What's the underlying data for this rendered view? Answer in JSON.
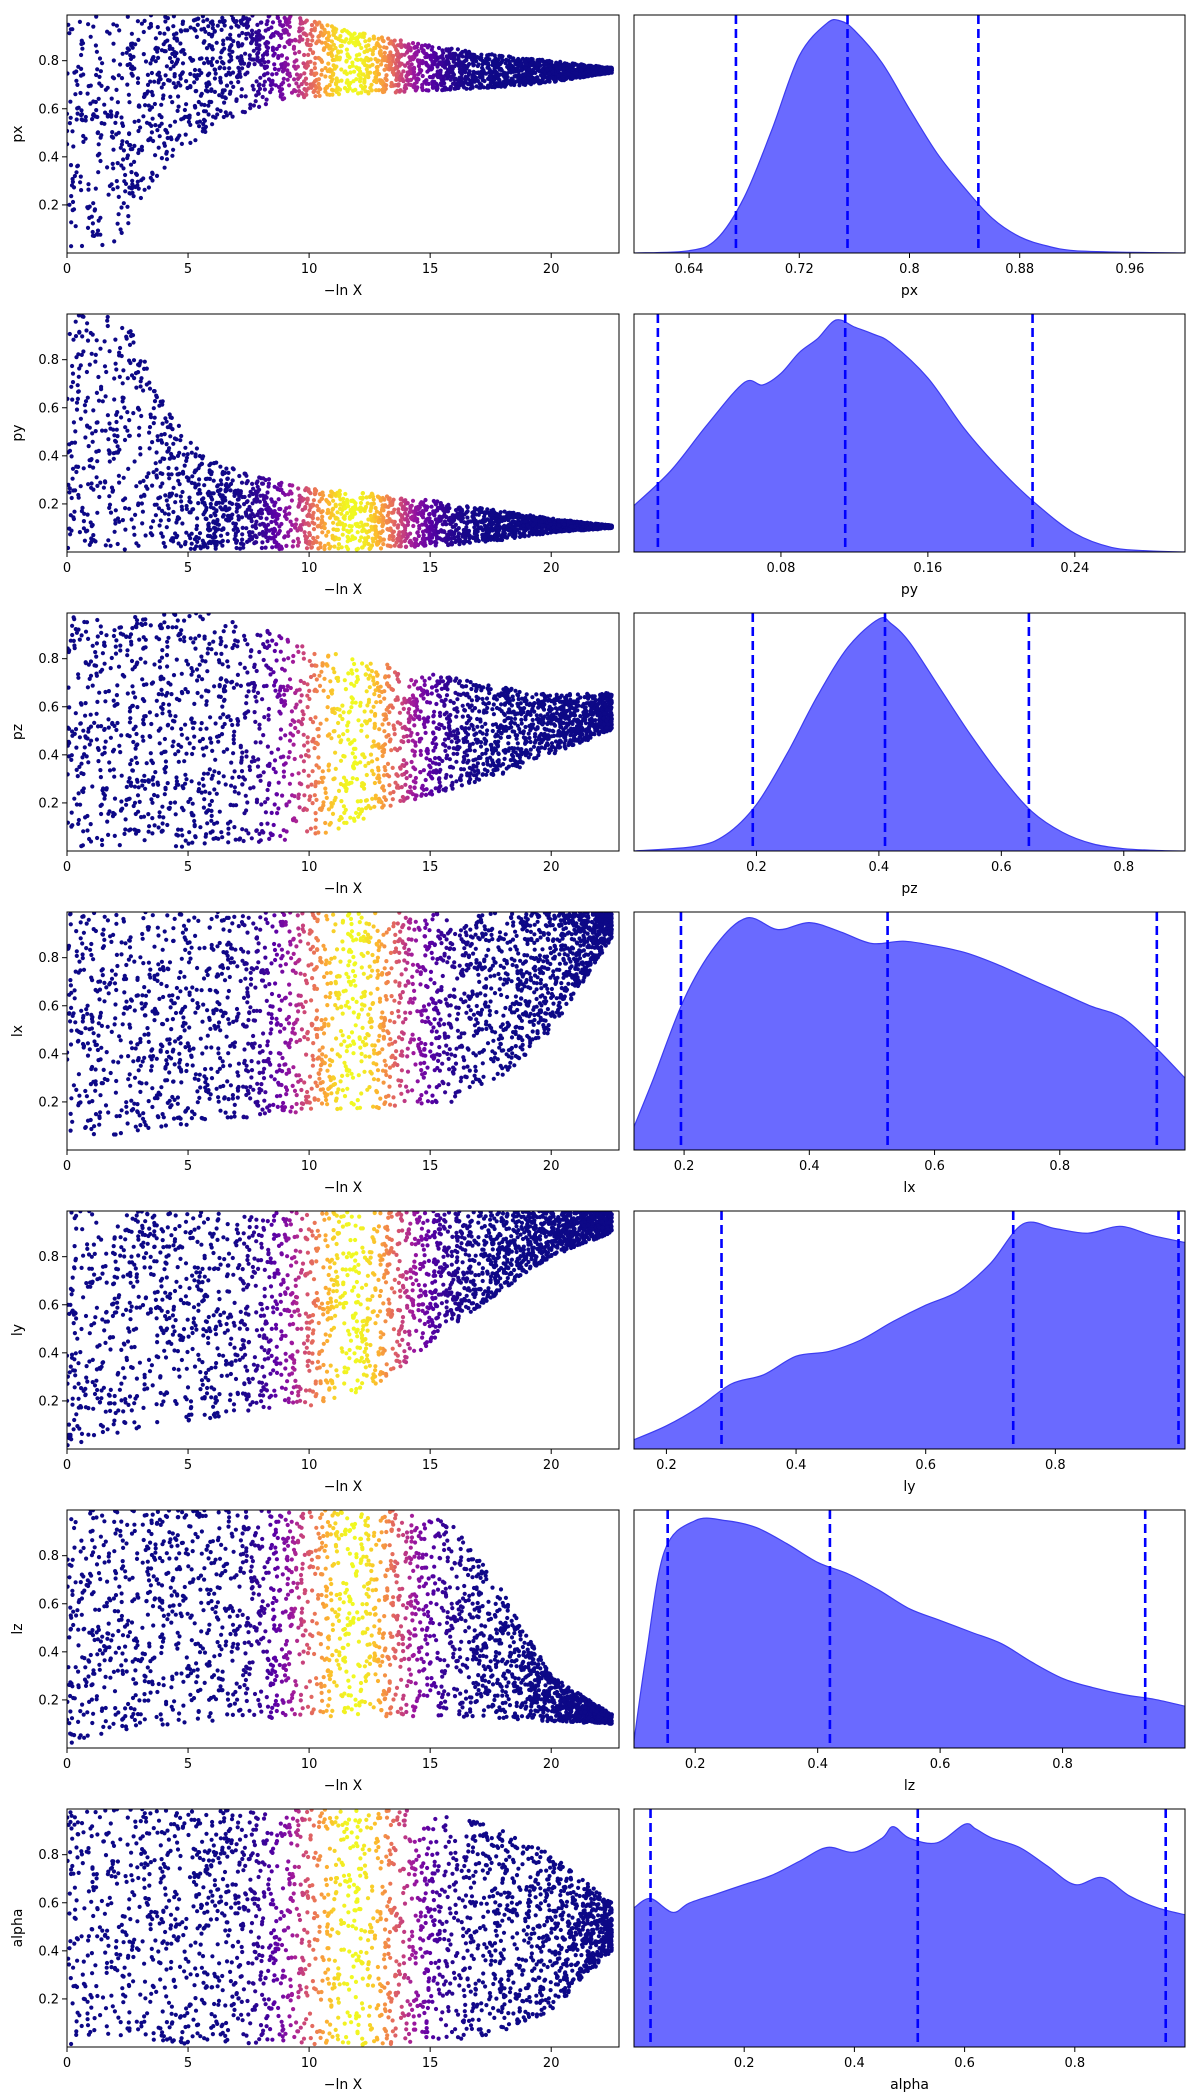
{
  "figure": {
    "colors": {
      "kde_fill": "#6a6aff",
      "kde_edge": "#3c3cf0",
      "quantile_line": "#0000ff",
      "scatter_colormap": [
        "#0d0887",
        "#5a01a5",
        "#9c179e",
        "#cc4778",
        "#ed7953",
        "#fdb42f",
        "#f0f921"
      ]
    }
  },
  "chart_data": [
    {
      "type": "scatter",
      "name": "trace-px",
      "xlabel": "−ln X",
      "ylabel": "px",
      "xlim": [
        0,
        22.8
      ],
      "ylim": [
        0,
        0.99
      ],
      "xticks": [
        0,
        5,
        10,
        15,
        20
      ],
      "yticks": [
        0.2,
        0.4,
        0.6,
        0.8
      ],
      "envelope": {
        "x": [
          0,
          2,
          3,
          4,
          5,
          6,
          7,
          8,
          9,
          10,
          12,
          14,
          16,
          18,
          20,
          22.5
        ],
        "lower": [
          0.01,
          0.02,
          0.18,
          0.34,
          0.44,
          0.52,
          0.57,
          0.61,
          0.64,
          0.65,
          0.66,
          0.67,
          0.68,
          0.69,
          0.71,
          0.75
        ],
        "upper": [
          0.99,
          0.99,
          0.99,
          0.99,
          0.99,
          0.99,
          0.99,
          0.99,
          0.99,
          0.97,
          0.92,
          0.88,
          0.85,
          0.82,
          0.8,
          0.77
        ]
      },
      "colormap_peak_x": 11.8
    },
    {
      "type": "area",
      "name": "kde-px",
      "xlabel": "px",
      "xlim": [
        0.6,
        1.0
      ],
      "xticks": [
        0.64,
        0.72,
        0.8,
        0.88,
        0.96
      ],
      "quantiles": [
        0.674,
        0.755,
        0.85
      ],
      "x": [
        0.6,
        0.64,
        0.66,
        0.68,
        0.7,
        0.72,
        0.74,
        0.75,
        0.76,
        0.78,
        0.8,
        0.82,
        0.84,
        0.86,
        0.88,
        0.9,
        0.92,
        0.96,
        1.0
      ],
      "density": [
        0,
        0.01,
        0.06,
        0.24,
        0.53,
        0.85,
        0.99,
        1.0,
        0.96,
        0.82,
        0.62,
        0.43,
        0.28,
        0.15,
        0.07,
        0.03,
        0.01,
        0.003,
        0
      ]
    },
    {
      "type": "scatter",
      "name": "trace-py",
      "xlabel": "−ln X",
      "ylabel": "py",
      "xlim": [
        0,
        22.8
      ],
      "ylim": [
        0,
        0.99
      ],
      "xticks": [
        0,
        5,
        10,
        15,
        20
      ],
      "yticks": [
        0.2,
        0.4,
        0.6,
        0.8
      ],
      "envelope": {
        "x": [
          0,
          2,
          3,
          4,
          5,
          6,
          8,
          10,
          12,
          14,
          16,
          18,
          20,
          22.5
        ],
        "lower": [
          0.01,
          0.01,
          0.01,
          0.01,
          0.01,
          0.01,
          0.01,
          0.01,
          0.01,
          0.02,
          0.03,
          0.05,
          0.08,
          0.1
        ],
        "upper": [
          0.99,
          0.99,
          0.88,
          0.62,
          0.47,
          0.38,
          0.31,
          0.27,
          0.25,
          0.23,
          0.2,
          0.17,
          0.14,
          0.11
        ]
      },
      "colormap_peak_x": 11.8
    },
    {
      "type": "area",
      "name": "kde-py",
      "xlabel": "py",
      "xlim": [
        0.0,
        0.3
      ],
      "xticks": [
        0.08,
        0.16,
        0.24
      ],
      "quantiles": [
        0.013,
        0.115,
        0.217
      ],
      "x": [
        0.0,
        0.02,
        0.04,
        0.06,
        0.07,
        0.08,
        0.09,
        0.1,
        0.11,
        0.12,
        0.13,
        0.14,
        0.16,
        0.18,
        0.2,
        0.22,
        0.24,
        0.26,
        0.28,
        0.3
      ],
      "density": [
        0.2,
        0.35,
        0.55,
        0.73,
        0.72,
        0.77,
        0.86,
        0.92,
        1.0,
        0.97,
        0.94,
        0.9,
        0.75,
        0.53,
        0.35,
        0.2,
        0.08,
        0.02,
        0.005,
        0
      ]
    },
    {
      "type": "scatter",
      "name": "trace-pz",
      "xlabel": "−ln X",
      "ylabel": "pz",
      "xlim": [
        0,
        22.8
      ],
      "ylim": [
        0,
        0.99
      ],
      "xticks": [
        0,
        5,
        10,
        15,
        20
      ],
      "yticks": [
        0.2,
        0.4,
        0.6,
        0.8
      ],
      "envelope": {
        "x": [
          0,
          4,
          6,
          8,
          10,
          12,
          14,
          16,
          18,
          20,
          22.5
        ],
        "lower": [
          0.01,
          0.01,
          0.02,
          0.03,
          0.05,
          0.12,
          0.2,
          0.26,
          0.32,
          0.4,
          0.5
        ],
        "upper": [
          0.99,
          0.99,
          0.99,
          0.93,
          0.85,
          0.8,
          0.76,
          0.72,
          0.68,
          0.65,
          0.66
        ]
      },
      "colormap_peak_x": 11.8
    },
    {
      "type": "area",
      "name": "kde-pz",
      "xlabel": "pz",
      "xlim": [
        0.0,
        0.9
      ],
      "xticks": [
        0.2,
        0.4,
        0.6,
        0.8
      ],
      "quantiles": [
        0.194,
        0.41,
        0.645
      ],
      "x": [
        0.0,
        0.1,
        0.15,
        0.2,
        0.25,
        0.3,
        0.35,
        0.4,
        0.42,
        0.45,
        0.5,
        0.55,
        0.6,
        0.65,
        0.7,
        0.75,
        0.8,
        0.85,
        0.9
      ],
      "density": [
        0,
        0.02,
        0.07,
        0.2,
        0.42,
        0.67,
        0.88,
        1.0,
        0.98,
        0.9,
        0.7,
        0.5,
        0.32,
        0.17,
        0.08,
        0.03,
        0.01,
        0.003,
        0
      ]
    },
    {
      "type": "scatter",
      "name": "trace-lx",
      "xlabel": "−ln X",
      "ylabel": "lx",
      "xlim": [
        0,
        22.8
      ],
      "ylim": [
        0,
        0.99
      ],
      "xticks": [
        0,
        5,
        10,
        15,
        20
      ],
      "yticks": [
        0.2,
        0.4,
        0.6,
        0.8
      ],
      "envelope": {
        "x": [
          0,
          2,
          4,
          6,
          8,
          10,
          12,
          14,
          16,
          18,
          20,
          22.5
        ],
        "lower": [
          0.01,
          0.05,
          0.09,
          0.12,
          0.14,
          0.16,
          0.17,
          0.18,
          0.2,
          0.3,
          0.5,
          0.88
        ],
        "upper": [
          0.99,
          0.99,
          0.99,
          0.99,
          0.99,
          0.99,
          0.99,
          0.99,
          0.99,
          0.99,
          0.99,
          0.99
        ]
      },
      "colormap_peak_x": 11.8
    },
    {
      "type": "area",
      "name": "kde-lx",
      "xlabel": "lx",
      "xlim": [
        0.12,
        1.0
      ],
      "xticks": [
        0.2,
        0.4,
        0.6,
        0.8
      ],
      "quantiles": [
        0.195,
        0.525,
        0.955
      ],
      "x": [
        0.12,
        0.15,
        0.2,
        0.25,
        0.3,
        0.35,
        0.4,
        0.45,
        0.5,
        0.55,
        0.6,
        0.65,
        0.7,
        0.75,
        0.8,
        0.85,
        0.9,
        0.95,
        1.0
      ],
      "density": [
        0.1,
        0.3,
        0.65,
        0.88,
        1.0,
        0.95,
        0.98,
        0.94,
        0.89,
        0.9,
        0.88,
        0.85,
        0.8,
        0.74,
        0.68,
        0.62,
        0.57,
        0.45,
        0.31
      ]
    },
    {
      "type": "scatter",
      "name": "trace-ly",
      "xlabel": "−ln X",
      "ylabel": "ly",
      "xlim": [
        0,
        22.8
      ],
      "ylim": [
        0,
        0.99
      ],
      "xticks": [
        0,
        5,
        10,
        15,
        20
      ],
      "yticks": [
        0.2,
        0.4,
        0.6,
        0.8
      ],
      "envelope": {
        "x": [
          0,
          2,
          4,
          6,
          8,
          10,
          12,
          14,
          16,
          18,
          20,
          22.5
        ],
        "lower": [
          0.01,
          0.06,
          0.1,
          0.13,
          0.16,
          0.18,
          0.21,
          0.36,
          0.52,
          0.66,
          0.8,
          0.9
        ],
        "upper": [
          0.99,
          0.99,
          0.99,
          0.99,
          0.99,
          0.99,
          0.99,
          0.99,
          0.99,
          0.99,
          0.99,
          0.99
        ]
      },
      "colormap_peak_x": 11.8
    },
    {
      "type": "area",
      "name": "kde-ly",
      "xlabel": "ly",
      "xlim": [
        0.15,
        1.0
      ],
      "xticks": [
        0.2,
        0.4,
        0.6,
        0.8
      ],
      "quantiles": [
        0.285,
        0.735,
        0.99
      ],
      "x": [
        0.15,
        0.2,
        0.25,
        0.3,
        0.35,
        0.4,
        0.45,
        0.5,
        0.55,
        0.6,
        0.65,
        0.7,
        0.75,
        0.8,
        0.85,
        0.9,
        0.95,
        1.0
      ],
      "density": [
        0.04,
        0.1,
        0.18,
        0.28,
        0.32,
        0.4,
        0.42,
        0.47,
        0.55,
        0.62,
        0.68,
        0.8,
        0.97,
        0.95,
        0.93,
        0.96,
        0.92,
        0.89
      ]
    },
    {
      "type": "scatter",
      "name": "trace-lz",
      "xlabel": "−ln X",
      "ylabel": "lz",
      "xlim": [
        0,
        22.8
      ],
      "ylim": [
        0,
        0.99
      ],
      "xticks": [
        0,
        5,
        10,
        15,
        20
      ],
      "yticks": [
        0.2,
        0.4,
        0.6,
        0.8
      ],
      "envelope": {
        "x": [
          0,
          2,
          4,
          6,
          8,
          10,
          12,
          14,
          16,
          18,
          20,
          22.5
        ],
        "lower": [
          0.01,
          0.06,
          0.09,
          0.11,
          0.12,
          0.13,
          0.13,
          0.13,
          0.13,
          0.12,
          0.11,
          0.1
        ],
        "upper": [
          0.99,
          0.99,
          0.99,
          0.99,
          0.99,
          0.99,
          0.99,
          0.99,
          0.93,
          0.65,
          0.3,
          0.14
        ]
      },
      "colormap_peak_x": 11.8
    },
    {
      "type": "area",
      "name": "kde-lz",
      "xlabel": "lz",
      "xlim": [
        0.1,
        1.0
      ],
      "xticks": [
        0.2,
        0.4,
        0.6,
        0.8
      ],
      "quantiles": [
        0.155,
        0.42,
        0.935
      ],
      "x": [
        0.1,
        0.12,
        0.15,
        0.2,
        0.25,
        0.3,
        0.35,
        0.4,
        0.45,
        0.5,
        0.55,
        0.6,
        0.65,
        0.7,
        0.75,
        0.8,
        0.85,
        0.9,
        0.95,
        1.0
      ],
      "density": [
        0.03,
        0.4,
        0.85,
        0.98,
        0.98,
        0.95,
        0.88,
        0.8,
        0.75,
        0.68,
        0.6,
        0.55,
        0.5,
        0.45,
        0.37,
        0.3,
        0.26,
        0.23,
        0.21,
        0.18
      ]
    },
    {
      "type": "scatter",
      "name": "trace-alpha",
      "xlabel": "−ln X",
      "ylabel": "alpha",
      "xlim": [
        0,
        22.8
      ],
      "ylim": [
        0,
        0.99
      ],
      "xticks": [
        0,
        5,
        10,
        15,
        20
      ],
      "yticks": [
        0.2,
        0.4,
        0.6,
        0.8
      ],
      "envelope": {
        "x": [
          0,
          4,
          8,
          10,
          12,
          14,
          16,
          18,
          20,
          22.5
        ],
        "lower": [
          0.01,
          0.01,
          0.01,
          0.01,
          0.01,
          0.01,
          0.02,
          0.06,
          0.15,
          0.4
        ],
        "upper": [
          0.99,
          0.99,
          0.99,
          0.99,
          0.99,
          0.99,
          0.98,
          0.9,
          0.8,
          0.6
        ]
      },
      "colormap_peak_x": 11.8
    },
    {
      "type": "area",
      "name": "kde-alpha",
      "xlabel": "alpha",
      "xlim": [
        0.0,
        1.0
      ],
      "xticks": [
        0.2,
        0.4,
        0.6,
        0.8
      ],
      "quantiles": [
        0.03,
        0.515,
        0.965
      ],
      "x": [
        0.0,
        0.03,
        0.07,
        0.1,
        0.15,
        0.2,
        0.25,
        0.3,
        0.35,
        0.4,
        0.45,
        0.47,
        0.5,
        0.55,
        0.6,
        0.62,
        0.65,
        0.7,
        0.75,
        0.8,
        0.85,
        0.9,
        0.95,
        1.0
      ],
      "density": [
        0.6,
        0.64,
        0.58,
        0.62,
        0.66,
        0.7,
        0.74,
        0.8,
        0.86,
        0.84,
        0.9,
        0.95,
        0.9,
        0.88,
        0.96,
        0.94,
        0.9,
        0.86,
        0.78,
        0.7,
        0.73,
        0.65,
        0.6,
        0.57
      ]
    }
  ]
}
